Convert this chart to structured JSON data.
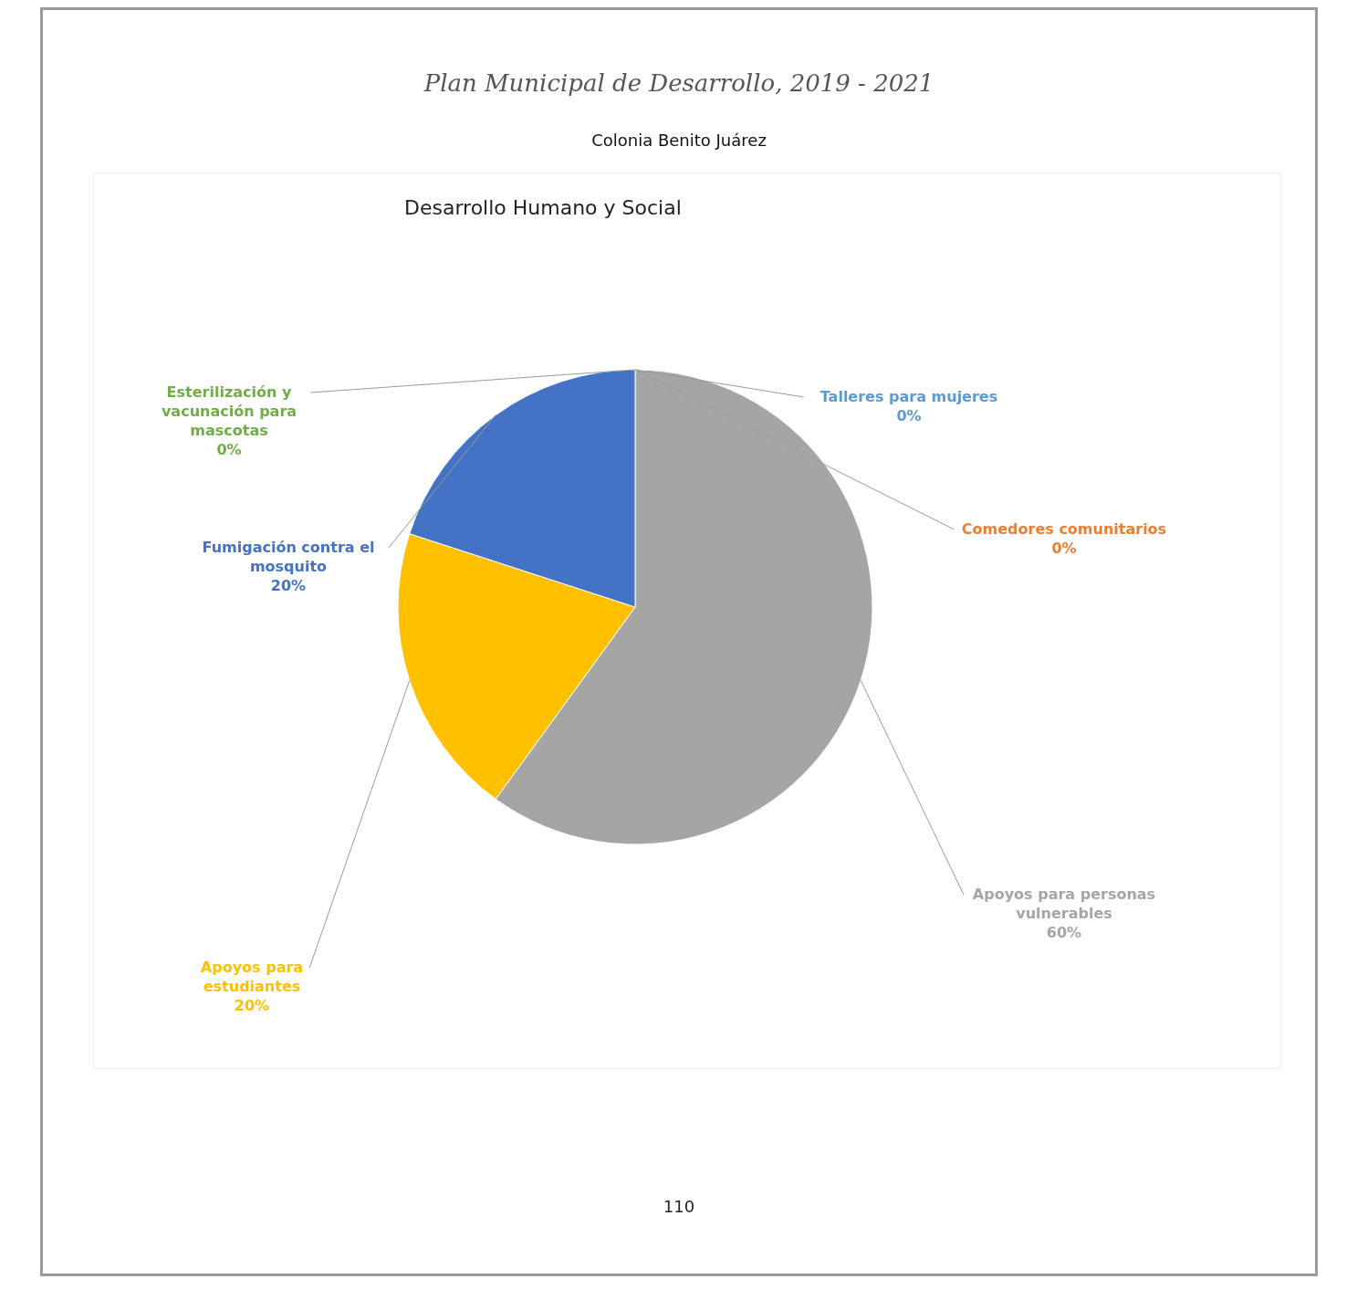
{
  "chart_data": {
    "type": "pie",
    "title": "Desarrollo Humano y Social",
    "subtitle": "Colonia Benito Juárez",
    "annotations": [
      "Plan Municipal de Desarrollo, 2019 - 2021",
      "110"
    ],
    "categories": [
      "Comedores comunitarios",
      "Apoyos para personas vulnerables",
      "Apoyos para estudiantes",
      "Fumigación contra el mosquito",
      "Esterilización y vacunación para mascotas",
      "Talleres para mujeres"
    ],
    "values": [
      0,
      60,
      20,
      20,
      0,
      0
    ],
    "colors": [
      "#ed7d31",
      "#a5a5a5",
      "#ffc000",
      "#4472c4",
      "#70ad47",
      "#5b9bd5"
    ],
    "value_labels": [
      "0%",
      "60%",
      "20%",
      "20%",
      "0%",
      "0%"
    ],
    "legend": false
  }
}
